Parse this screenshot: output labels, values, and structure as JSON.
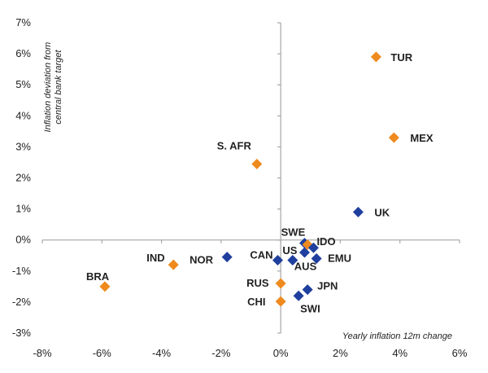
{
  "chart_data": {
    "type": "scatter",
    "xlabel": "Yearly inflation 12m change",
    "ylabel": "Inflation deviation from central bank target",
    "xlim": [
      -8,
      6
    ],
    "ylim": [
      -3,
      7
    ],
    "x_ticks": [
      -8,
      -6,
      -4,
      -2,
      0,
      2,
      4,
      6
    ],
    "y_ticks": [
      -3,
      -2,
      -1,
      0,
      1,
      2,
      3,
      4,
      5,
      6,
      7
    ],
    "x_tick_labels": [
      "-8%",
      "-6%",
      "-4%",
      "-2%",
      "0%",
      "2%",
      "4%",
      "6%"
    ],
    "y_tick_labels": [
      "-3%",
      "-2%",
      "-1%",
      "0%",
      "1%",
      "2%",
      "3%",
      "4%",
      "5%",
      "6%",
      "7%"
    ],
    "grid": false,
    "colors": {
      "blue": "#1f3f9e",
      "orange": "#ee8a1e",
      "axis": "#a6a6a6"
    },
    "points": [
      {
        "label": "TUR",
        "x": 3.2,
        "y": 5.9,
        "color": "orange"
      },
      {
        "label": "MEX",
        "x": 3.8,
        "y": 3.3,
        "color": "orange"
      },
      {
        "label": "S. AFR",
        "x": -0.8,
        "y": 2.45,
        "color": "orange"
      },
      {
        "label": "UK",
        "x": 2.6,
        "y": 0.9,
        "color": "blue"
      },
      {
        "label": "SWE",
        "x": 0.8,
        "y": -0.1,
        "color": "blue"
      },
      {
        "label": "",
        "x": 0.9,
        "y": -0.15,
        "color": "orange"
      },
      {
        "label": "IDO",
        "x": 1.1,
        "y": -0.25,
        "color": "blue"
      },
      {
        "label": "US",
        "x": 0.8,
        "y": -0.4,
        "color": "blue"
      },
      {
        "label": "CAN",
        "x": -0.1,
        "y": -0.65,
        "color": "blue"
      },
      {
        "label": "AUS",
        "x": 0.4,
        "y": -0.65,
        "color": "blue"
      },
      {
        "label": "EMU",
        "x": 1.2,
        "y": -0.6,
        "color": "blue"
      },
      {
        "label": "NOR",
        "x": -1.8,
        "y": -0.55,
        "color": "blue"
      },
      {
        "label": "IND",
        "x": -3.6,
        "y": -0.8,
        "color": "orange"
      },
      {
        "label": "BRA",
        "x": -5.9,
        "y": -1.5,
        "color": "orange"
      },
      {
        "label": "RUS",
        "x": 0.0,
        "y": -1.4,
        "color": "orange"
      },
      {
        "label": "JPN",
        "x": 0.9,
        "y": -1.6,
        "color": "blue"
      },
      {
        "label": "SWI",
        "x": 0.6,
        "y": -1.8,
        "color": "blue"
      },
      {
        "label": "CHI",
        "x": 0.0,
        "y": -1.98,
        "color": "orange"
      }
    ]
  }
}
